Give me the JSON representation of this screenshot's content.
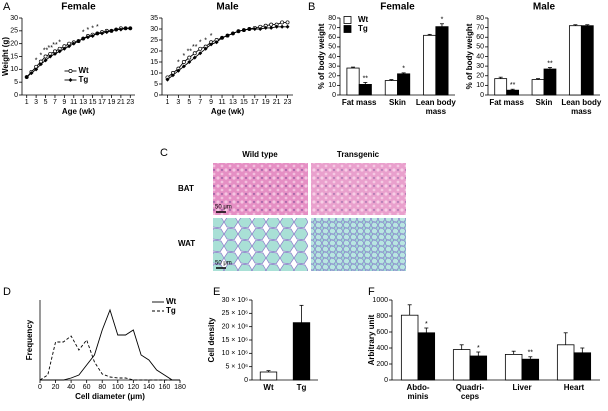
{
  "panel_labels": [
    "A",
    "B",
    "C",
    "D",
    "E",
    "F"
  ],
  "histology": {
    "columns": [
      "Wild type",
      "Transgenic"
    ],
    "rows": [
      "BAT",
      "WAT"
    ],
    "scale_bar": [
      "50 μm",
      "50 μm"
    ]
  },
  "chart_data": [
    {
      "type": "line",
      "title": "Female",
      "xlabel": "Age (wk)",
      "ylabel": "Weight (g)",
      "x": [
        1,
        2,
        3,
        4,
        5,
        6,
        7,
        8,
        9,
        10,
        11,
        12,
        13,
        14,
        15,
        16,
        17,
        18,
        19,
        20,
        21,
        22,
        23
      ],
      "xlim": [
        0,
        24
      ],
      "xticks": [
        1,
        3,
        5,
        7,
        9,
        11,
        13,
        15,
        17,
        19,
        21,
        23
      ],
      "ylim": [
        0,
        30
      ],
      "yticks": [
        0,
        5,
        10,
        15,
        20,
        25,
        30
      ],
      "legend": "lower center",
      "significance": [
        null,
        null,
        "*",
        "*",
        "**",
        "**",
        "**",
        "*",
        null,
        null,
        null,
        null,
        "*",
        "*",
        "*",
        "*",
        null,
        null,
        null,
        null,
        null,
        null,
        null
      ],
      "series": [
        {
          "name": "Wt",
          "color": "#000000",
          "marker": "open-circle",
          "values": [
            7,
            9,
            11,
            13,
            15,
            16,
            17,
            18,
            19,
            20,
            20.5,
            21,
            22,
            23,
            23.5,
            24,
            24.5,
            25,
            25,
            25.5,
            26,
            26,
            26
          ]
        },
        {
          "name": "Tg",
          "color": "#000000",
          "marker": "filled-diamond",
          "values": [
            7,
            8.5,
            10,
            12,
            13.5,
            15,
            16,
            17,
            18,
            19,
            20,
            21,
            22,
            22.5,
            23,
            24,
            24,
            24.5,
            25,
            25.5,
            25.5,
            26,
            26
          ]
        }
      ]
    },
    {
      "type": "line",
      "title": "Male",
      "xlabel": "Age (wk)",
      "x": [
        1,
        2,
        3,
        4,
        5,
        6,
        7,
        8,
        9,
        10,
        11,
        12,
        13,
        14,
        15,
        16,
        17,
        18,
        19,
        20,
        21,
        22,
        23
      ],
      "xlim": [
        0,
        24
      ],
      "xticks": [
        1,
        3,
        5,
        7,
        9,
        11,
        13,
        15,
        17,
        19,
        21,
        23
      ],
      "ylim": [
        0,
        35
      ],
      "yticks": [
        0,
        5,
        10,
        15,
        20,
        25,
        30,
        35
      ],
      "significance": [
        null,
        null,
        "*",
        "*",
        "**",
        "**",
        "*",
        "*",
        "*",
        null,
        null,
        null,
        null,
        null,
        null,
        null,
        null,
        null,
        null,
        null,
        null,
        null,
        null
      ],
      "series": [
        {
          "name": "Wt",
          "color": "#000000",
          "marker": "open-circle",
          "values": [
            8,
            10,
            12,
            15,
            17,
            19,
            21,
            22,
            24,
            25,
            26,
            27,
            28,
            29,
            29.5,
            30,
            30.5,
            31,
            31.5,
            32,
            32,
            33,
            33
          ]
        },
        {
          "name": "Tg",
          "color": "#000000",
          "marker": "filled-diamond",
          "values": [
            7,
            9,
            11,
            13,
            15,
            17,
            19,
            21,
            23,
            24,
            26,
            27,
            28,
            29,
            29.5,
            30,
            30,
            30,
            30.5,
            30.5,
            31,
            31,
            31
          ]
        }
      ]
    },
    {
      "type": "bar",
      "title": "Female",
      "ylabel": "% of body weight",
      "categories": [
        [
          "Fat mass"
        ],
        [
          "Skin"
        ],
        [
          "Lean body",
          "mass"
        ]
      ],
      "ylim": [
        0,
        80
      ],
      "yticks": [
        0,
        10,
        20,
        30,
        40,
        50,
        60,
        70,
        80
      ],
      "legend": "upper left",
      "series": [
        {
          "name": "Wt",
          "color": "#ffffff",
          "values": [
            28,
            15,
            62
          ],
          "errors": [
            1,
            1,
            1
          ]
        },
        {
          "name": "Tg",
          "color": "#000000",
          "values": [
            11,
            22,
            71
          ],
          "errors": [
            2,
            1,
            3
          ],
          "significance": [
            "**",
            "*",
            "*"
          ]
        }
      ]
    },
    {
      "type": "bar",
      "title": "Male",
      "ylabel": "% of body weight",
      "categories": [
        [
          "Fat mass"
        ],
        [
          "Skin"
        ],
        [
          "Lean body",
          "mass"
        ]
      ],
      "ylim": [
        0,
        80
      ],
      "yticks": [
        0,
        10,
        20,
        30,
        40,
        50,
        60,
        70,
        80
      ],
      "series": [
        {
          "name": "Wt",
          "color": "#ffffff",
          "values": [
            17,
            16,
            72
          ],
          "errors": [
            1.5,
            1,
            1
          ]
        },
        {
          "name": "Tg",
          "color": "#000000",
          "values": [
            5,
            27,
            72
          ],
          "errors": [
            1,
            1.5,
            1
          ],
          "significance": [
            "**",
            "**",
            null
          ]
        }
      ]
    },
    {
      "type": "line",
      "xlabel": "Cell diameter (μm)",
      "ylabel": "Frequency",
      "x": [
        0,
        10,
        20,
        30,
        40,
        50,
        60,
        70,
        80,
        90,
        100,
        110,
        120,
        130,
        140,
        150,
        160,
        170,
        180
      ],
      "xlim": [
        0,
        180
      ],
      "xticks": [
        0,
        20,
        40,
        60,
        80,
        100,
        120,
        140,
        160,
        180
      ],
      "ylim": [
        0,
        80
      ],
      "legend": "upper right",
      "series": [
        {
          "name": "Wt",
          "color": "#000000",
          "values": [
            0,
            0,
            0,
            0,
            2,
            5,
            15,
            25,
            50,
            70,
            45,
            45,
            50,
            25,
            20,
            10,
            5,
            0,
            0
          ]
        },
        {
          "name": "Tg",
          "color": "#000000",
          "dash": true,
          "values": [
            0,
            5,
            38,
            38,
            44,
            30,
            40,
            18,
            6,
            3,
            2,
            2,
            0,
            0,
            0,
            0,
            0,
            0,
            0
          ]
        }
      ]
    },
    {
      "type": "bar",
      "ylabel": "Cell density",
      "categories": [
        [
          "Wt"
        ],
        [
          "Tg"
        ]
      ],
      "ylim": [
        0,
        30000000
      ],
      "yticks": [
        {
          "value": 0,
          "label": "0"
        },
        {
          "value": 5000000,
          "label": "5 × 10⁶"
        },
        {
          "value": 10000000,
          "label": "10 × 10⁶"
        },
        {
          "value": 15000000,
          "label": "15 × 10⁶"
        },
        {
          "value": 20000000,
          "label": "20 × 10⁶"
        },
        {
          "value": 25000000,
          "label": "25 × 10⁶"
        },
        {
          "value": 30000000,
          "label": "30 × 10⁶"
        }
      ],
      "series": [
        {
          "color": "#000000",
          "point_colors": [
            "#ffffff",
            "#000000"
          ],
          "values": [
            3000000,
            21500000
          ],
          "errors": [
            500000,
            6500000
          ]
        }
      ]
    },
    {
      "type": "bar",
      "ylabel": "Arbitrary unit",
      "categories": [
        [
          "Abdo-",
          "minis"
        ],
        [
          "Quadri-",
          "ceps"
        ],
        [
          "Liver"
        ],
        [
          "Heart"
        ]
      ],
      "ylim": [
        0,
        1000
      ],
      "yticks": [
        0,
        200,
        400,
        600,
        800,
        1000
      ],
      "series": [
        {
          "name": "Wt",
          "color": "#ffffff",
          "values": [
            810,
            380,
            320,
            440
          ],
          "errors": [
            130,
            60,
            40,
            150
          ]
        },
        {
          "name": "Tg",
          "color": "#000000",
          "values": [
            590,
            300,
            260,
            340
          ],
          "errors": [
            60,
            50,
            30,
            60
          ],
          "significance": [
            "*",
            "*",
            "**",
            null
          ]
        }
      ]
    }
  ]
}
